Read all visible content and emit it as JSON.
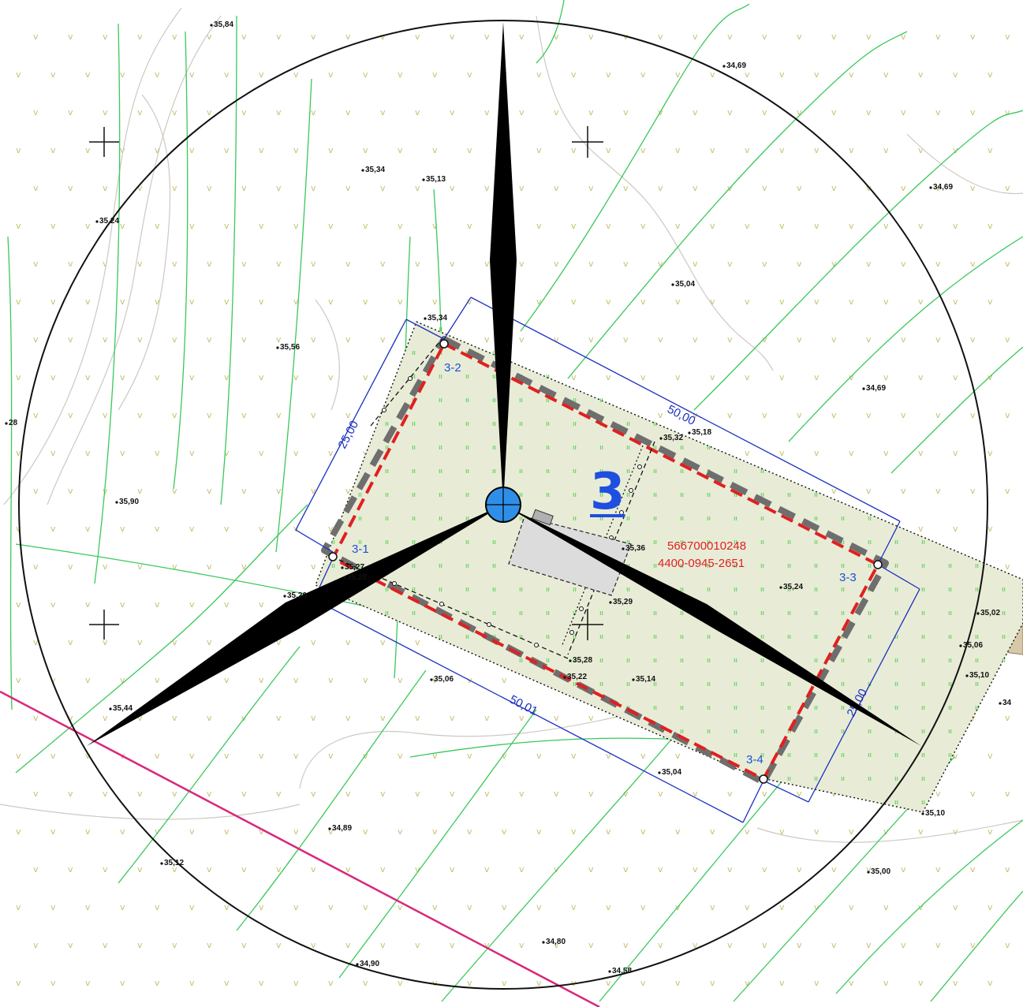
{
  "plot": {
    "number": "3",
    "parcel_id": "566700010248",
    "parcel_code": "4400-0945-2651"
  },
  "corners": [
    {
      "label": "3-1"
    },
    {
      "label": "3-2"
    },
    {
      "label": "3-3"
    },
    {
      "label": "3-4"
    }
  ],
  "dimensions": {
    "side_top": "50,00",
    "side_left": "25,00",
    "side_bottom": "50,01",
    "side_right": "25,00"
  },
  "elevations": [
    "35,84",
    "34,69",
    "35,34",
    "35,13",
    "34,69",
    "35,24",
    "35,04",
    "35,34",
    "35,56",
    "34,69",
    "35,32",
    "35,18",
    "35,36",
    "35,90",
    "35,27",
    "35,20",
    "35,28",
    "35,29",
    "35,24",
    "35,02",
    "35,06",
    "35,10",
    "35,28",
    "35,22",
    "35,06",
    "35,14",
    "35,44",
    "35,04",
    "35,10",
    "34,89",
    "35,12",
    "35,00",
    "34,80",
    "34,90",
    "34,58",
    "28",
    "34"
  ],
  "colors": {
    "plot_boundary": "#e02020",
    "buffer_zone": "#6e6e6e",
    "dimension_lines": "#1a2fc0",
    "contour_lines": "#3ac85a",
    "power_line": "#d8287a",
    "turbine_hub": "#2f8fe8",
    "turbine_blades": "#000000",
    "lot_fill": "#e8ecd6"
  },
  "icons": {
    "turbine": "wind-turbine-icon",
    "grid_mark": "crosshair-icon",
    "survey_point": "survey-point-icon"
  }
}
